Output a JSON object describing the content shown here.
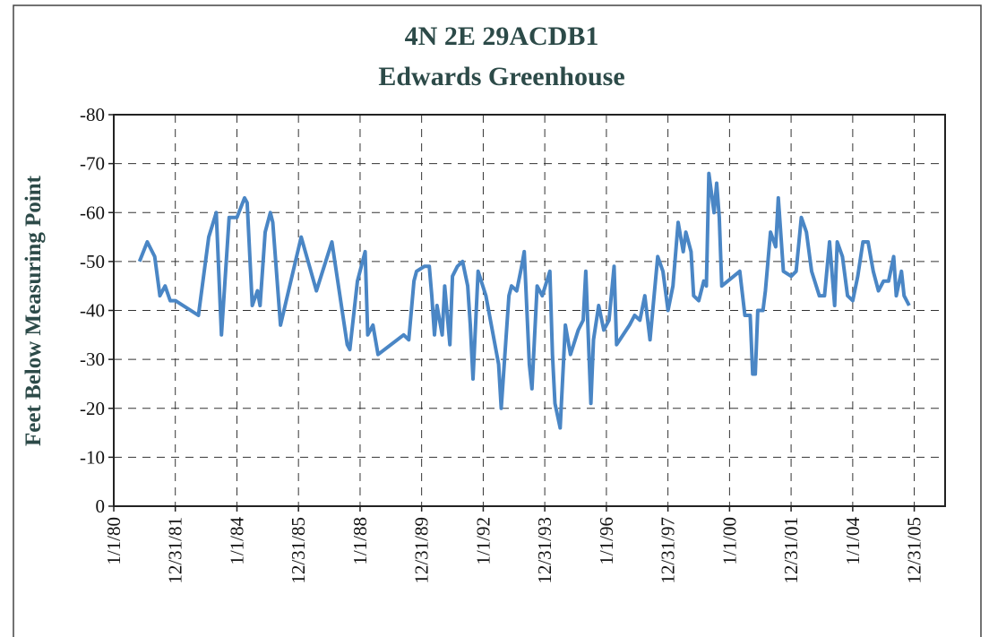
{
  "chart_data": {
    "type": "line",
    "title": "4N 2E 29ACDB1",
    "subtitle": "Edwards Greenhouse",
    "y_label": "Feet Below Measuring Point",
    "ylim": [
      0,
      -80
    ],
    "yticks": [
      0,
      -10,
      -20,
      -30,
      -40,
      -50,
      -60,
      -70,
      -80
    ],
    "xlim": [
      "1980-01-01",
      "2007-01-01"
    ],
    "xticks": [
      {
        "value": "1980-01-01",
        "label": "1/1/80"
      },
      {
        "value": "1981-12-31",
        "label": "12/31/81"
      },
      {
        "value": "1984-01-01",
        "label": "1/1/84"
      },
      {
        "value": "1985-12-31",
        "label": "12/31/85"
      },
      {
        "value": "1988-01-01",
        "label": "1/1/88"
      },
      {
        "value": "1989-12-31",
        "label": "12/31/89"
      },
      {
        "value": "1992-01-01",
        "label": "1/1/92"
      },
      {
        "value": "1993-12-31",
        "label": "12/31/93"
      },
      {
        "value": "1996-01-01",
        "label": "1/1/96"
      },
      {
        "value": "1997-12-31",
        "label": "12/31/97"
      },
      {
        "value": "2000-01-01",
        "label": "1/1/00"
      },
      {
        "value": "2001-12-31",
        "label": "12/31/01"
      },
      {
        "value": "2004-01-01",
        "label": "1/1/04"
      },
      {
        "value": "2005-12-31",
        "label": "12/31/05"
      }
    ],
    "grid": true,
    "series": [
      {
        "color": "#4a86c5",
        "x": [
          "1980-11",
          "1981-02",
          "1981-05",
          "1981-07",
          "1981-09",
          "1981-11",
          "1982-01",
          "1982-10",
          "1983-02",
          "1983-05",
          "1983-07",
          "1983-10",
          "1984-01",
          "1984-04",
          "1984-05",
          "1984-07",
          "1984-09",
          "1984-10",
          "1984-12",
          "1985-02",
          "1985-03",
          "1985-06",
          "1986-02",
          "1986-08",
          "1987-02",
          "1987-08",
          "1987-09",
          "1987-12",
          "1988-03",
          "1988-04",
          "1988-06",
          "1988-08",
          "1989-06",
          "1989-08",
          "1989-10",
          "1989-11",
          "1990-02",
          "1990-04",
          "1990-05",
          "1990-06",
          "1990-07",
          "1990-09",
          "1990-10",
          "1990-12",
          "1991-01",
          "1991-03",
          "1991-05",
          "1991-07",
          "1991-08",
          "1991-09",
          "1991-11",
          "1992-02",
          "1992-07",
          "1992-08",
          "1992-11",
          "1992-12",
          "1993-02",
          "1993-04",
          "1993-05",
          "1993-07",
          "1993-08",
          "1993-10",
          "1993-12",
          "1994-03",
          "1994-04",
          "1994-05",
          "1994-07",
          "1994-09",
          "1994-11",
          "1995-02",
          "1995-04",
          "1995-05",
          "1995-07",
          "1995-08",
          "1995-10",
          "1995-12",
          "1996-02",
          "1996-04",
          "1996-05",
          "1996-10",
          "1996-12",
          "1997-02",
          "1997-04",
          "1997-06",
          "1997-09",
          "1997-11",
          "1998-01",
          "1998-03",
          "1998-05",
          "1998-07",
          "1998-08",
          "1998-10",
          "1998-11",
          "1999-01",
          "1999-03",
          "1999-04",
          "1999-05",
          "1999-07",
          "1999-08",
          "1999-09",
          "1999-10",
          "2000-05",
          "2000-07",
          "2000-09",
          "2000-10",
          "2000-11",
          "2000-12",
          "2001-02",
          "2001-03",
          "2001-05",
          "2001-07",
          "2001-08",
          "2001-10",
          "2002-01",
          "2002-03",
          "2002-05",
          "2002-07",
          "2002-09",
          "2002-12",
          "2003-02",
          "2003-04",
          "2003-06",
          "2003-07",
          "2003-09",
          "2003-11",
          "2004-01",
          "2004-03",
          "2004-05",
          "2004-07",
          "2004-09",
          "2004-11",
          "2005-01",
          "2005-03",
          "2005-05",
          "2005-06",
          "2005-08",
          "2005-09",
          "2005-11"
        ],
        "values": [
          -50,
          -54,
          -51,
          -43,
          -45,
          -42,
          -42,
          -39,
          -55,
          -60,
          -35,
          -59,
          -59,
          -63,
          -62,
          -41,
          -44,
          -41,
          -56,
          -60,
          -58,
          -37,
          -55,
          -44,
          -54,
          -33,
          -32,
          -46,
          -52,
          -35,
          -37,
          -31,
          -35,
          -34,
          -46,
          -48,
          -49,
          -49,
          -43,
          -35,
          -41,
          -35,
          -45,
          -33,
          -47,
          -49,
          -50,
          -45,
          -37,
          -26,
          -48,
          -43,
          -29,
          -20,
          -43,
          -45,
          -44,
          -49,
          -52,
          -29,
          -24,
          -45,
          -43,
          -48,
          -31,
          -21,
          -16,
          -37,
          -31,
          -36,
          -38,
          -48,
          -21,
          -34,
          -41,
          -36,
          -38,
          -49,
          -33,
          -37,
          -39,
          -38,
          -43,
          -34,
          -51,
          -48,
          -40,
          -45,
          -58,
          -52,
          -56,
          -52,
          -43,
          -42,
          -46,
          -45,
          -68,
          -60,
          -66,
          -59,
          -45,
          -48,
          -39,
          -39,
          -27,
          -27,
          -40,
          -40,
          -44,
          -56,
          -53,
          -63,
          -48,
          -47,
          -48,
          -59,
          -56,
          -48,
          -43,
          -43,
          -54,
          -41,
          -54,
          -51,
          -43,
          -42,
          -47,
          -54,
          -54,
          -48,
          -44,
          -46,
          -46,
          -51,
          -43,
          -48,
          -43,
          -41
        ]
      }
    ]
  }
}
